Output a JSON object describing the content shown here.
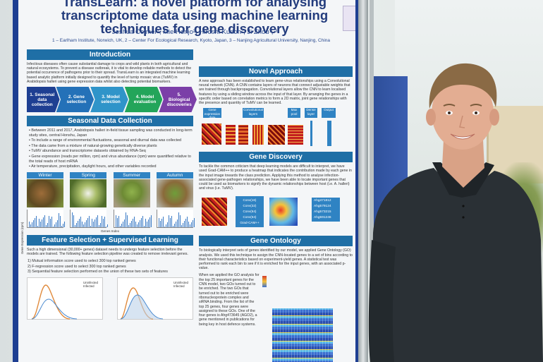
{
  "poster": {
    "title": "TransLearn: a novel platform for analysing transcriptome data using machine learning techniques for gene discovery",
    "authors": "Joshua Colmer¹, Mie Honjo², Hiroshi Kudoh², Ji Zhou¹, ³",
    "affiliations": "1 – Earlham Institute, Norwich, UK, 2 – Center For Ecological Research, Kyoto, Japan, 3 – Nanjing Agricultural University, Nanjing, China",
    "introduction": {
      "heading": "Introduction",
      "text": "Infectious diseases often cause substantial damage to crops and wild plants in both agricultural and natural ecosystems. To prevent a disease outbreak, it is vital to develop reliable methods to detect the potential occurrence of pathogens prior to their spread. TransLearn is an integrated machine learning based analytic platform initially designed to quantify the level of turnip mosaic virus (TuMV) in Arabidopsis halleri using gene expression data whilst also detecting potential biomarkers.",
      "pipeline": [
        {
          "label": "1. Seasonal data collection",
          "color": "#1e3f92"
        },
        {
          "label": "2. Gene selection",
          "color": "#2471b8"
        },
        {
          "label": "3. Model selection",
          "color": "#2f94c9"
        },
        {
          "label": "4. Model evaluation",
          "color": "#23a55a"
        },
        {
          "label": "5. Biological discoveries",
          "color": "#7b3fa8"
        }
      ]
    },
    "seasonal": {
      "heading": "Seasonal Data Collection",
      "bullets": [
        "Between 2011 and 2017, Arabidopsis halleri in-field tissue sampling was conducted in long-term study sites, central Honshu, Japan",
        "To include a range of environmental fluctuations, seasonal and diurnal data was collected",
        "The data came from a mixture of natural-growing genetically diverse plants",
        "TuMV abundance and transcriptome datasets obtained by RNA-Seq",
        "Gene expression (reads per million, rpm) and virus abundance (rpm) were quantified relative to the total reads of host mRNA",
        "Air temperature, precipitation, daylight hours, and other variables recorded"
      ],
      "seasons": [
        "Winter",
        "Spring",
        "Summer",
        "Autumn"
      ],
      "y_axis": "Gene Expression (rpm)",
      "x_axis": "Genes Index"
    },
    "feature": {
      "heading": "Feature Selection + Supervised Learning",
      "text": "Such a high dimensional (30,000+ genes) dataset needs to undergo feature selection before the models are trained. The following feature selection pipeline was created to remove irrelevant genes.",
      "steps": [
        "1)  Mutual information score used to select 300 top ranked genes",
        "2)  F-regression score used to select 300 top ranked genes",
        "3)  Sequential feature selection performed on the union of these two sets of features"
      ],
      "legend": [
        "Uninfected",
        "Infected"
      ]
    },
    "novel": {
      "heading": "Novel Approach",
      "text": "A new approach has been established to learn gene-virus relationships using a Convolutional neural network (CNN). A CNN contains layers of neurons that connect adjustable weights that are trained through backpropagation. Convolutional layers allow the CNN to learn localised features by using a sliding window across the input of that layer. By arranging the genes in a specific order based on correlation metrics to form a 2D matrix, joint gene relationships with the presence and quantity of TuMV can be learned.",
      "boxes": [
        "Gene expression data",
        "Convolutional layers",
        "Max pool",
        "Dense layer",
        "Output"
      ]
    },
    "discovery": {
      "heading": "Gene Discovery",
      "text": "To tackle the common criticism that deep learning models are difficult to interpret, we have used Grad-CAM++ to produce a heatmap that indicates the contribution made by each gene in the input image towards the class prediction. Applying this method to analyse infection-associated gene-pathogen relationships, we have been able to locate important genes that could be used as biomarkers to signify the dynamic relationships between host (i.e. A. halleri) and virus (i.e. TuMV).",
      "layers": [
        "Conv(16)",
        "Conv(32)",
        "Conv(64)",
        "Conv(64)",
        "Grad-CAM++"
      ],
      "genes": [
        "Ahg471812",
        "Ahg579124",
        "Ahg573215",
        "Ahg591246"
      ]
    },
    "ontology": {
      "heading": "Gene Ontology",
      "text": "To biologically interpret sets of genes identified by our model, we applied Gene Ontology (GO) analysis. We used this technique to assign the CNN-located genes to a set of bins according to their functional characteristics based on experiment-yield genes. A statistical test was performed to rank each bin to see if it is enriched for the input genes, with an associated p-value.",
      "detail": "When we applied the GO analysis for the top 25 important genes for the CNN model, two GOs turned out to be enriched. The two GOs that turned out to be enriched were ribonucleoprotein complex and siRNA binding. From the list of the top 25 genes, four genes were assigned to these GOs. One of the four genes is Ahg473645 (AGO2), a gene mentioned in publications for being key in host defence systems."
    }
  }
}
